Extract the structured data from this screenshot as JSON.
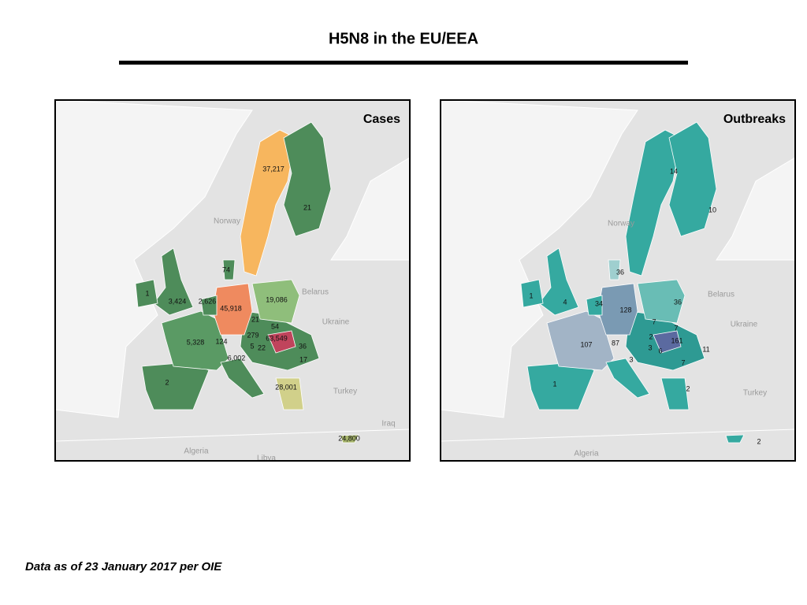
{
  "header": {
    "title": "H5N8 in the EU/EEA"
  },
  "maps": [
    {
      "title": "Cases",
      "labels": [
        "37,217",
        "21",
        "74",
        "1",
        "3,424",
        "2,626",
        "45,918",
        "19,086",
        "21",
        "54",
        "279",
        "63,549",
        "124",
        "5,328",
        "5",
        "22",
        "36",
        "6,002",
        "17",
        "2",
        "28,001",
        "24,800"
      ],
      "basemap_labels": [
        "Norway",
        "Belarus",
        "Ukraine",
        "Turkey",
        "Iraq",
        "Algeria",
        "Libya"
      ]
    },
    {
      "title": "Outbreaks",
      "labels": [
        "14",
        "10",
        "36",
        "1",
        "4",
        "34",
        "128",
        "36",
        "7",
        "7",
        "107",
        "87",
        "2",
        "3",
        "6",
        "161",
        "11",
        "3",
        "7",
        "1",
        "2",
        "2"
      ],
      "basemap_labels": [
        "Norway",
        "Belarus",
        "Ukraine",
        "Turkey",
        "Algeria"
      ]
    }
  ],
  "footer": {
    "note": "Data as of 23 January 2017 per OIE"
  }
}
